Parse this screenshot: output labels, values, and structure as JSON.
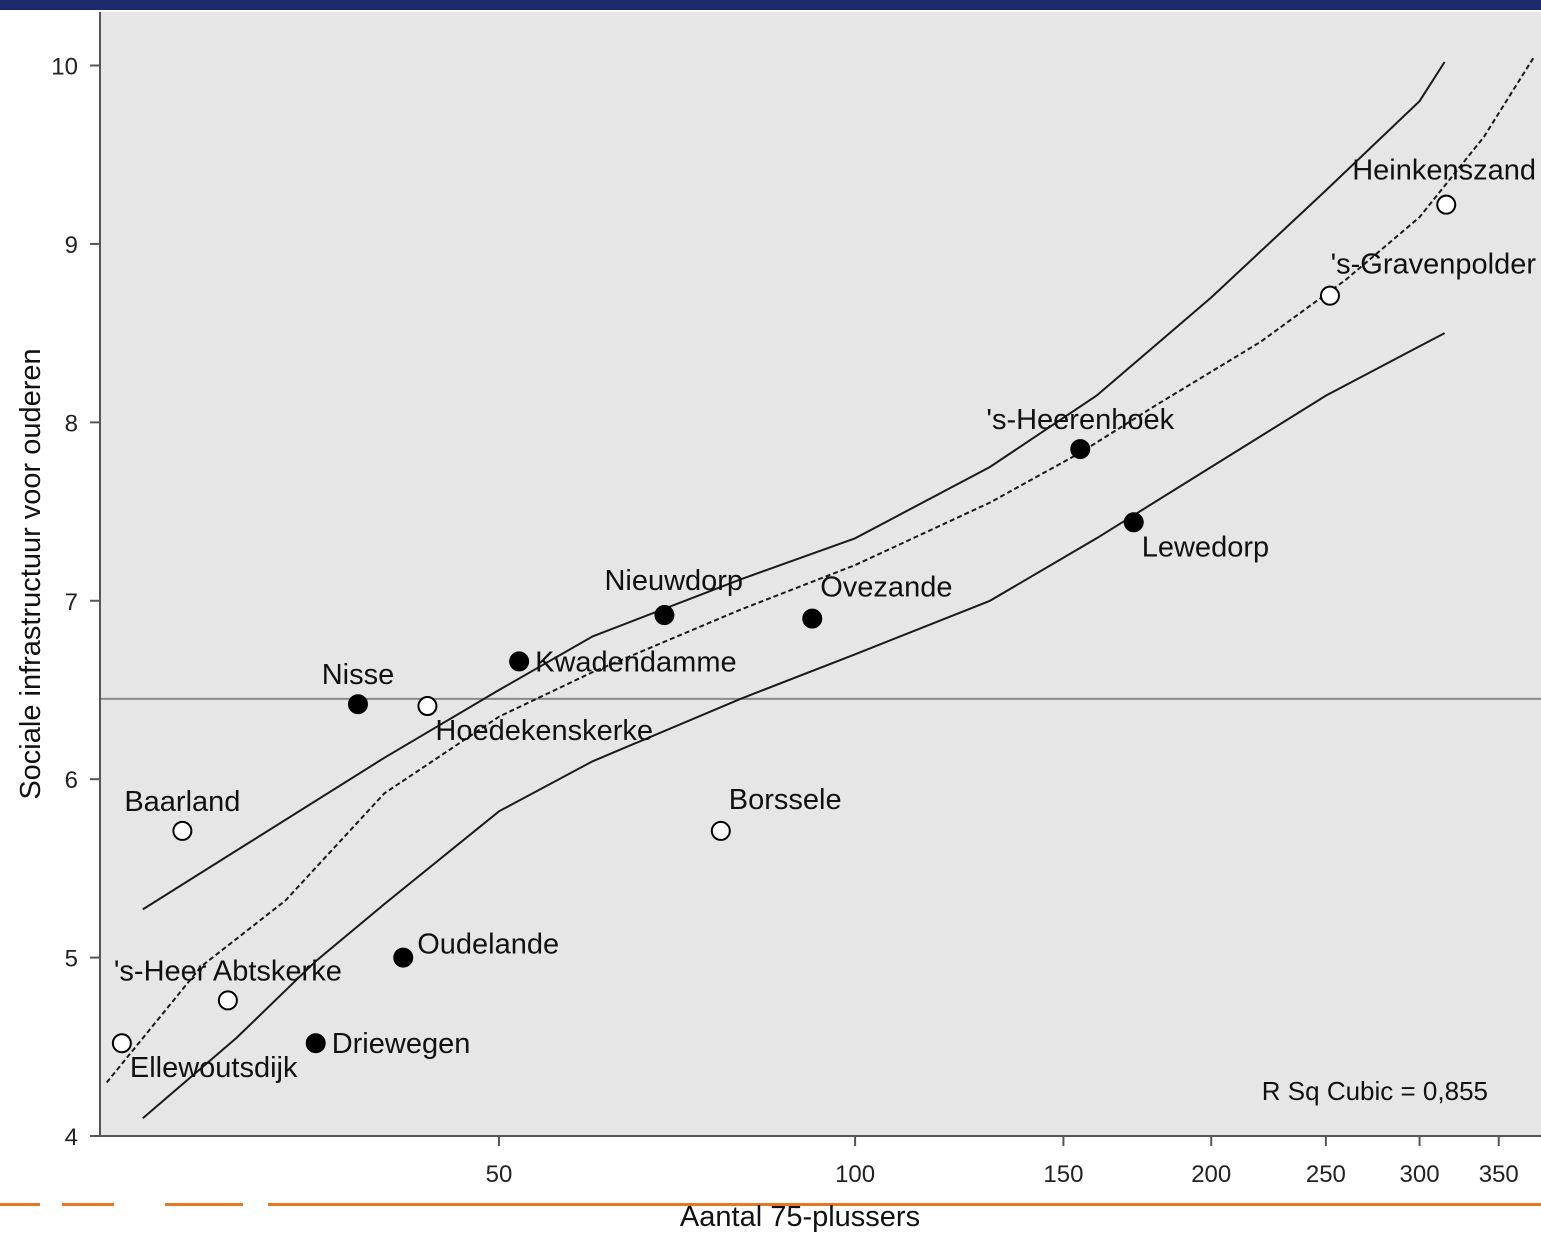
{
  "colors": {
    "top_bar": "#1a2a6c",
    "plot_background": "#e6e6e6",
    "axis": "#555555",
    "filled_point": "#000000",
    "open_point_fill": "#ffffff",
    "accent_line": "#e87722"
  },
  "chart_data": {
    "type": "scatter",
    "xlabel": "Aantal 75-plussers",
    "ylabel": "Sociale infrastructuur voor ouderen",
    "x_scale": "log",
    "xlim": [
      23,
      380
    ],
    "ylim": [
      4,
      10.3
    ],
    "x_ticks": [
      {
        "value": 50,
        "label": "50"
      },
      {
        "value": 100,
        "label": "100"
      },
      {
        "value": 150,
        "label": "150"
      },
      {
        "value": 200,
        "label": "200"
      },
      {
        "value": 250,
        "label": "250"
      },
      {
        "value": 300,
        "label": "300"
      },
      {
        "value": 350,
        "label": "350"
      }
    ],
    "y_ticks": [
      {
        "value": 4,
        "label": "4"
      },
      {
        "value": 5,
        "label": "5"
      },
      {
        "value": 6,
        "label": "6"
      },
      {
        "value": 7,
        "label": "7"
      },
      {
        "value": 8,
        "label": "8"
      },
      {
        "value": 9,
        "label": "9"
      },
      {
        "value": 10,
        "label": "10"
      }
    ],
    "reference_line_y": 6.45,
    "annotation": "R Sq Cubic = 0,855",
    "points": [
      {
        "name": "Heinkenszand",
        "x": 316,
        "y": 9.22,
        "filled": false,
        "label_pos": "above-left"
      },
      {
        "name": "'s-Gravenpolder",
        "x": 252,
        "y": 8.71,
        "filled": false,
        "label_pos": "above-right"
      },
      {
        "name": "'s-Heerenhoek",
        "x": 155,
        "y": 7.85,
        "filled": true,
        "label_pos": "above"
      },
      {
        "name": "Lewedorp",
        "x": 172,
        "y": 7.44,
        "filled": true,
        "label_pos": "below-right"
      },
      {
        "name": "Nieuwdorp",
        "x": 69,
        "y": 6.92,
        "filled": true,
        "label_pos": "above-left"
      },
      {
        "name": "Ovezande",
        "x": 92,
        "y": 6.9,
        "filled": true,
        "label_pos": "above-right"
      },
      {
        "name": "Kwadendamme",
        "x": 52,
        "y": 6.66,
        "filled": true,
        "label_pos": "right"
      },
      {
        "name": "Nisse",
        "x": 38,
        "y": 6.42,
        "filled": true,
        "label_pos": "above"
      },
      {
        "name": "Hoedekenskerke",
        "x": 43.5,
        "y": 6.41,
        "filled": false,
        "label_pos": "below-right"
      },
      {
        "name": "Baarland",
        "x": 27,
        "y": 5.71,
        "filled": false,
        "label_pos": "above"
      },
      {
        "name": "Borssele",
        "x": 77,
        "y": 5.71,
        "filled": false,
        "label_pos": "above-right"
      },
      {
        "name": "Oudelande",
        "x": 41.5,
        "y": 5.0,
        "filled": true,
        "label_pos": "right-up"
      },
      {
        "name": "'s-Heer Abtskerke",
        "x": 29.5,
        "y": 4.76,
        "filled": false,
        "label_pos": "above"
      },
      {
        "name": "Driewegen",
        "x": 35,
        "y": 4.52,
        "filled": true,
        "label_pos": "right"
      },
      {
        "name": "Ellewoutsdijk",
        "x": 24,
        "y": 4.52,
        "filled": false,
        "label_pos": "below-right"
      }
    ],
    "fit_lines": [
      {
        "style": "dashed",
        "points": [
          [
            23.3,
            4.3
          ],
          [
            28,
            4.95
          ],
          [
            33,
            5.32
          ],
          [
            40,
            5.92
          ],
          [
            50,
            6.35
          ],
          [
            60,
            6.6
          ],
          [
            80,
            6.95
          ],
          [
            100,
            7.2
          ],
          [
            130,
            7.55
          ],
          [
            155,
            7.83
          ],
          [
            180,
            8.1
          ],
          [
            220,
            8.45
          ],
          [
            260,
            8.8
          ],
          [
            300,
            9.15
          ],
          [
            340,
            9.6
          ],
          [
            375,
            10.05
          ]
        ]
      },
      {
        "style": "solid",
        "points": [
          [
            25,
            5.27
          ],
          [
            30,
            5.6
          ],
          [
            40,
            6.12
          ],
          [
            50,
            6.5
          ],
          [
            60,
            6.8
          ],
          [
            80,
            7.12
          ],
          [
            100,
            7.35
          ],
          [
            130,
            7.75
          ],
          [
            160,
            8.15
          ],
          [
            200,
            8.7
          ],
          [
            250,
            9.3
          ],
          [
            300,
            9.8
          ],
          [
            315,
            10.02
          ]
        ]
      },
      {
        "style": "solid",
        "points": [
          [
            25,
            4.1
          ],
          [
            30,
            4.55
          ],
          [
            35,
            4.98
          ],
          [
            40,
            5.3
          ],
          [
            50,
            5.82
          ],
          [
            60,
            6.1
          ],
          [
            80,
            6.45
          ],
          [
            100,
            6.7
          ],
          [
            130,
            7.0
          ],
          [
            160,
            7.35
          ],
          [
            200,
            7.75
          ],
          [
            250,
            8.15
          ],
          [
            315,
            8.5
          ]
        ]
      }
    ]
  }
}
